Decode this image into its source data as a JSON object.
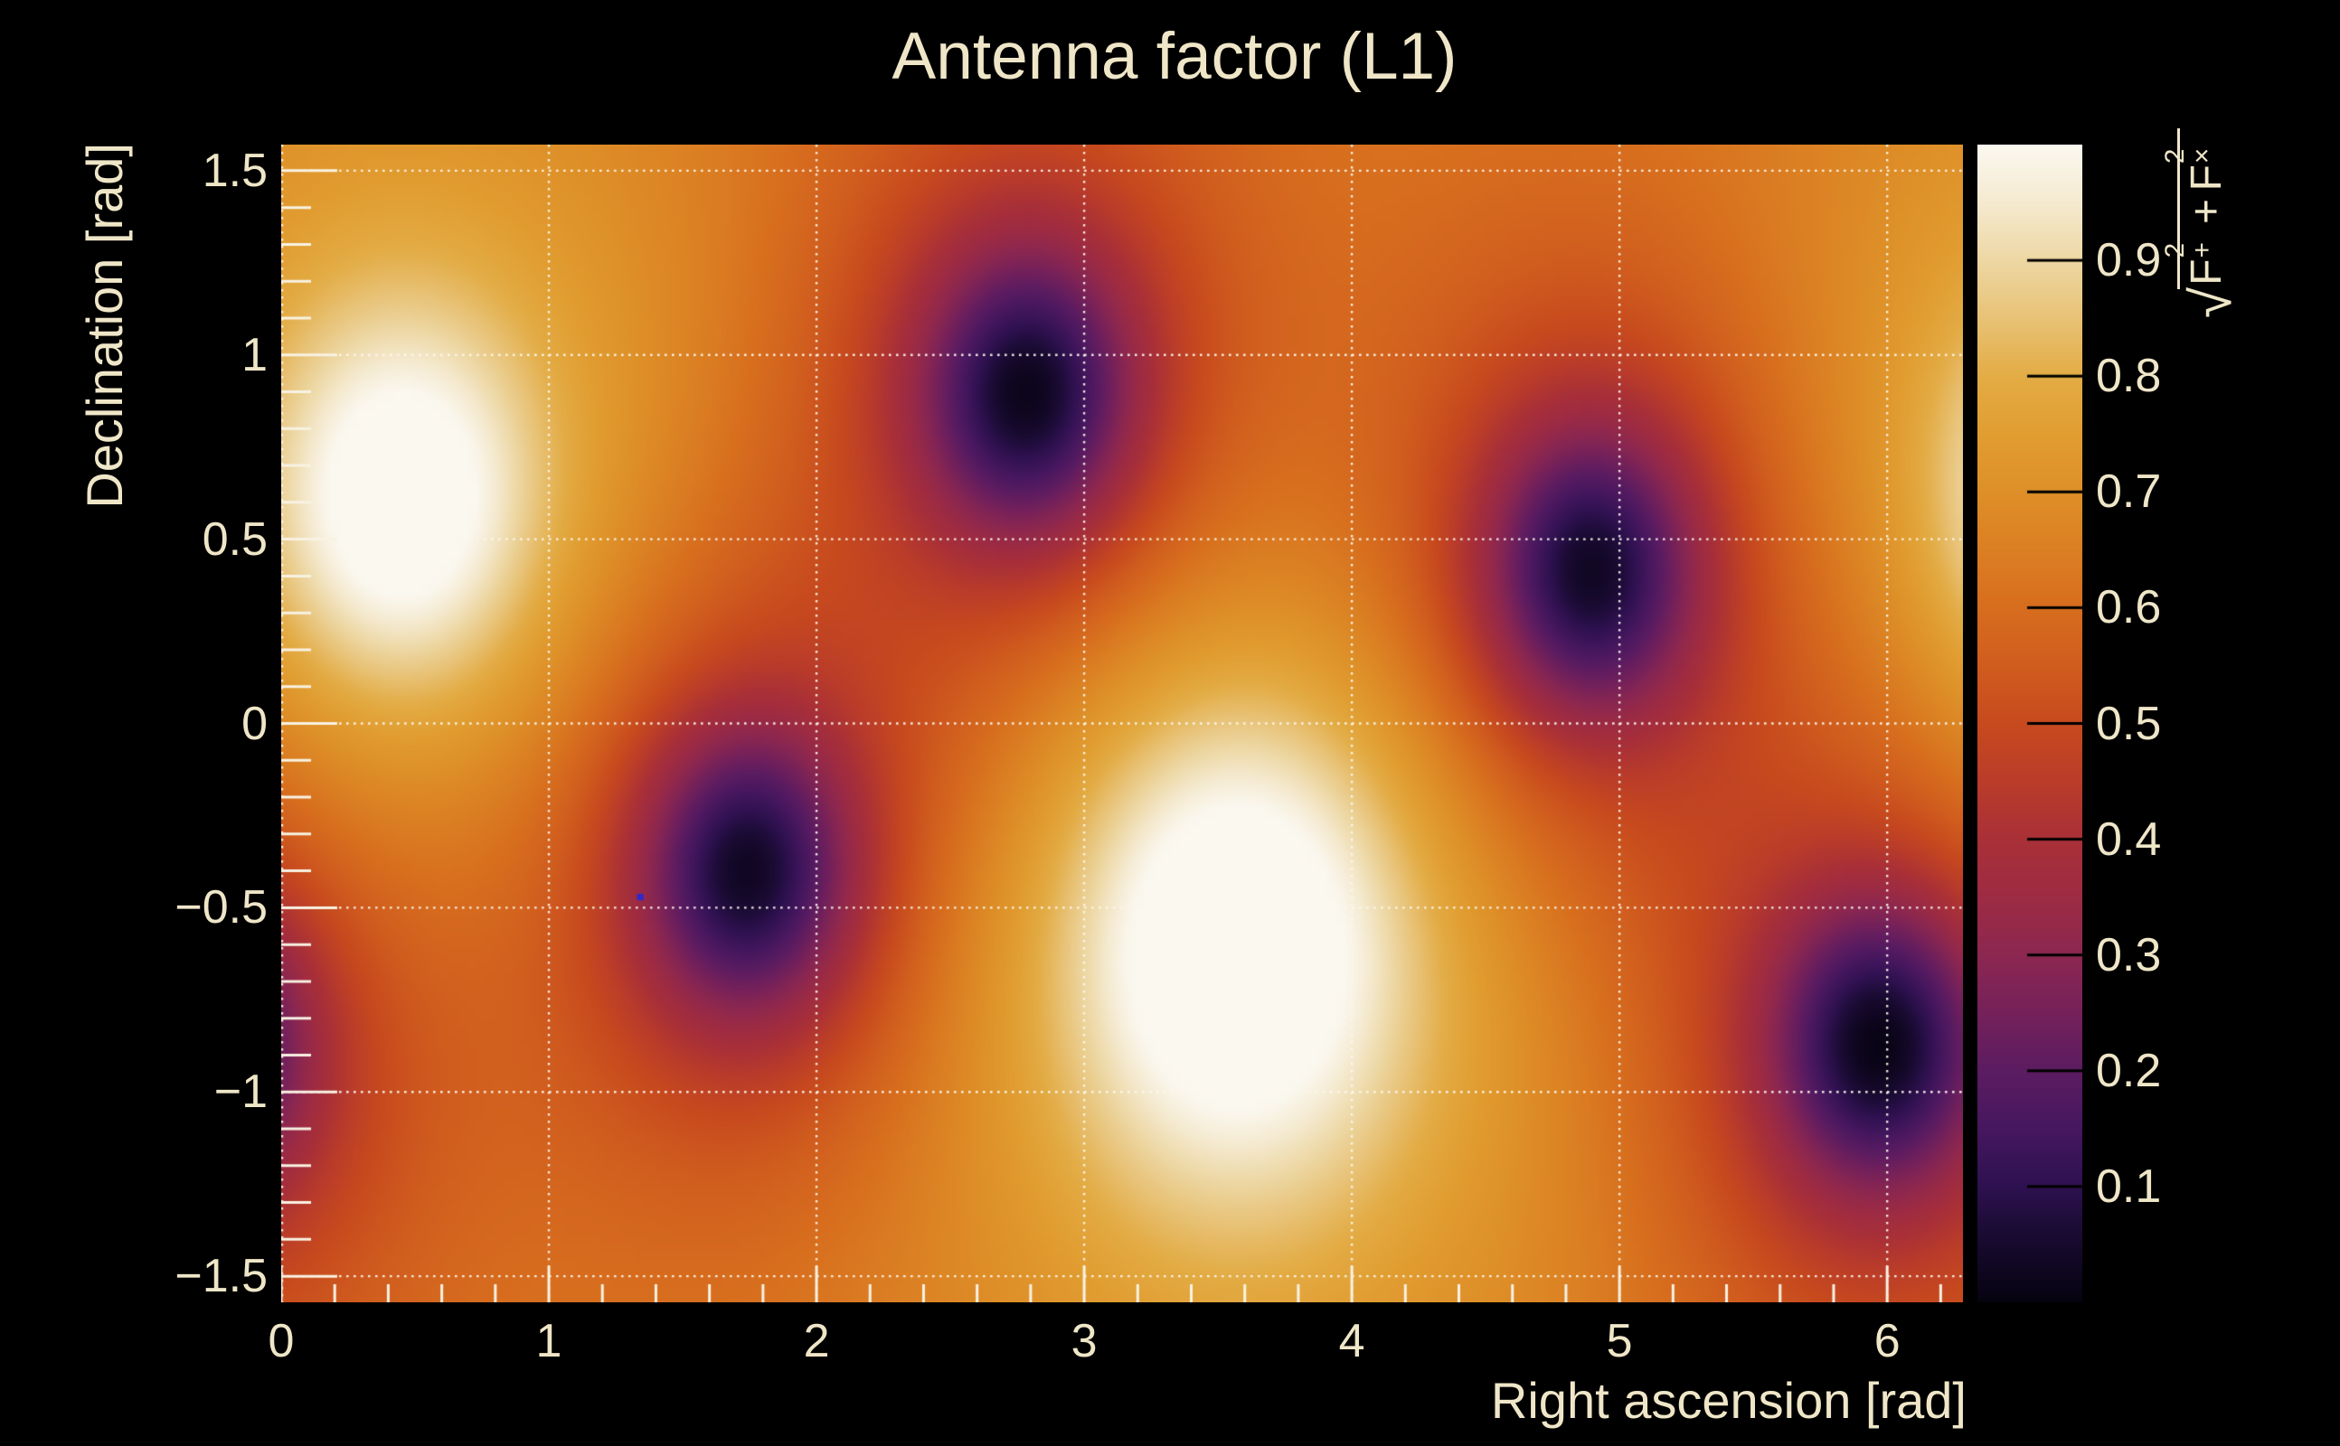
{
  "title": "Antenna factor (L1)",
  "axes": {
    "x": {
      "title": "Right ascension [rad]",
      "range": [
        0,
        6.2832
      ],
      "tick_values": [
        0,
        1,
        2,
        3,
        4,
        5,
        6
      ],
      "tick_labels": [
        "0",
        "1",
        "2",
        "3",
        "4",
        "5",
        "6"
      ],
      "minor_step": 0.2
    },
    "y": {
      "title": "Declination [rad]",
      "range": [
        -1.5708,
        1.5708
      ],
      "tick_values": [
        1.5,
        1,
        0.5,
        0,
        -0.5,
        -1,
        -1.5
      ],
      "tick_labels": [
        "1.5",
        "1",
        "0.5",
        "0",
        "−0.5",
        "−1",
        "−1.5"
      ],
      "minor_step": 0.1
    },
    "z": {
      "range": [
        0,
        1
      ],
      "tick_values": [
        0.9,
        0.8,
        0.7,
        0.6,
        0.5,
        0.4,
        0.3,
        0.2,
        0.1
      ],
      "tick_labels": [
        "0.9",
        "0.8",
        "0.7",
        "0.6",
        "0.5",
        "0.4",
        "0.3",
        "0.2",
        "0.1"
      ],
      "label": {
        "radical": "√",
        "term1_base": "F",
        "term1_sup": "2",
        "term1_sub": "+",
        "operator": "+",
        "term2_base": "F",
        "term2_sup": "2",
        "term2_sub": "×"
      }
    }
  },
  "chart_data": {
    "type": "heatmap",
    "title": "Antenna factor (L1)",
    "xlabel": "Right ascension [rad]",
    "ylabel": "Declination [rad]",
    "zlabel": "sqrt(F_plus^2 + F_cross^2)",
    "x_range": [
      0,
      6.2832
    ],
    "y_range": [
      -1.5708,
      1.5708
    ],
    "z_range": [
      0,
      1
    ],
    "grid": true,
    "colorbar_position": "right",
    "field": {
      "base": 0.63,
      "ra_period": 6.2832,
      "maxima": [
        {
          "ra": 0.45,
          "dec": 0.6,
          "amp_core": 0.3,
          "sigma_core": 0.35,
          "amp_halo": 0.18,
          "sigma_halo": 0.85
        },
        {
          "ra": 3.57,
          "dec": -0.6,
          "amp_core": 0.32,
          "sigma_core": 0.45,
          "amp_halo": 0.2,
          "sigma_halo": 0.95
        }
      ],
      "minima": [
        {
          "ra": 2.79,
          "dec": 0.89,
          "amp_core": -0.4,
          "sigma_core": 0.28,
          "amp_halo": -0.25,
          "sigma_halo": 0.62
        },
        {
          "ra": 4.89,
          "dec": 0.41,
          "amp_core": -0.4,
          "sigma_core": 0.28,
          "amp_halo": -0.25,
          "sigma_halo": 0.62
        },
        {
          "ra": 1.74,
          "dec": -0.4,
          "amp_core": -0.4,
          "sigma_core": 0.28,
          "amp_halo": -0.25,
          "sigma_halo": 0.62
        },
        {
          "ra": 5.97,
          "dec": -0.87,
          "amp_core": -0.4,
          "sigma_core": 0.28,
          "amp_halo": -0.25,
          "sigma_halo": 0.62
        }
      ]
    },
    "marker": {
      "ra": 1.34,
      "dec": -0.47,
      "color": "#2a2ace"
    },
    "colormap": [
      [
        0.0,
        "#060310"
      ],
      [
        0.03,
        "#100722"
      ],
      [
        0.06,
        "#1a0b33"
      ],
      [
        0.1,
        "#2e1150"
      ],
      [
        0.15,
        "#46175f"
      ],
      [
        0.2,
        "#5c1c61"
      ],
      [
        0.25,
        "#75215a"
      ],
      [
        0.3,
        "#8c2750"
      ],
      [
        0.35,
        "#9d2b43"
      ],
      [
        0.4,
        "#a93037"
      ],
      [
        0.45,
        "#ba3c2a"
      ],
      [
        0.5,
        "#c74a1e"
      ],
      [
        0.55,
        "#d05c1e"
      ],
      [
        0.6,
        "#d76d1e"
      ],
      [
        0.65,
        "#db7f23"
      ],
      [
        0.7,
        "#de8f28"
      ],
      [
        0.75,
        "#e19d31"
      ],
      [
        0.8,
        "#e3ac45"
      ],
      [
        0.85,
        "#e8c276"
      ],
      [
        0.9,
        "#edd7a3"
      ],
      [
        0.95,
        "#f5ead0"
      ],
      [
        1.0,
        "#fbf8f0"
      ]
    ]
  },
  "colors": {
    "background": "#000000",
    "text": "#efe6c8",
    "grid_dots": "#fcf7eb",
    "tick_marks": "#f8f2e3",
    "colorbar_tick": "#000000"
  }
}
